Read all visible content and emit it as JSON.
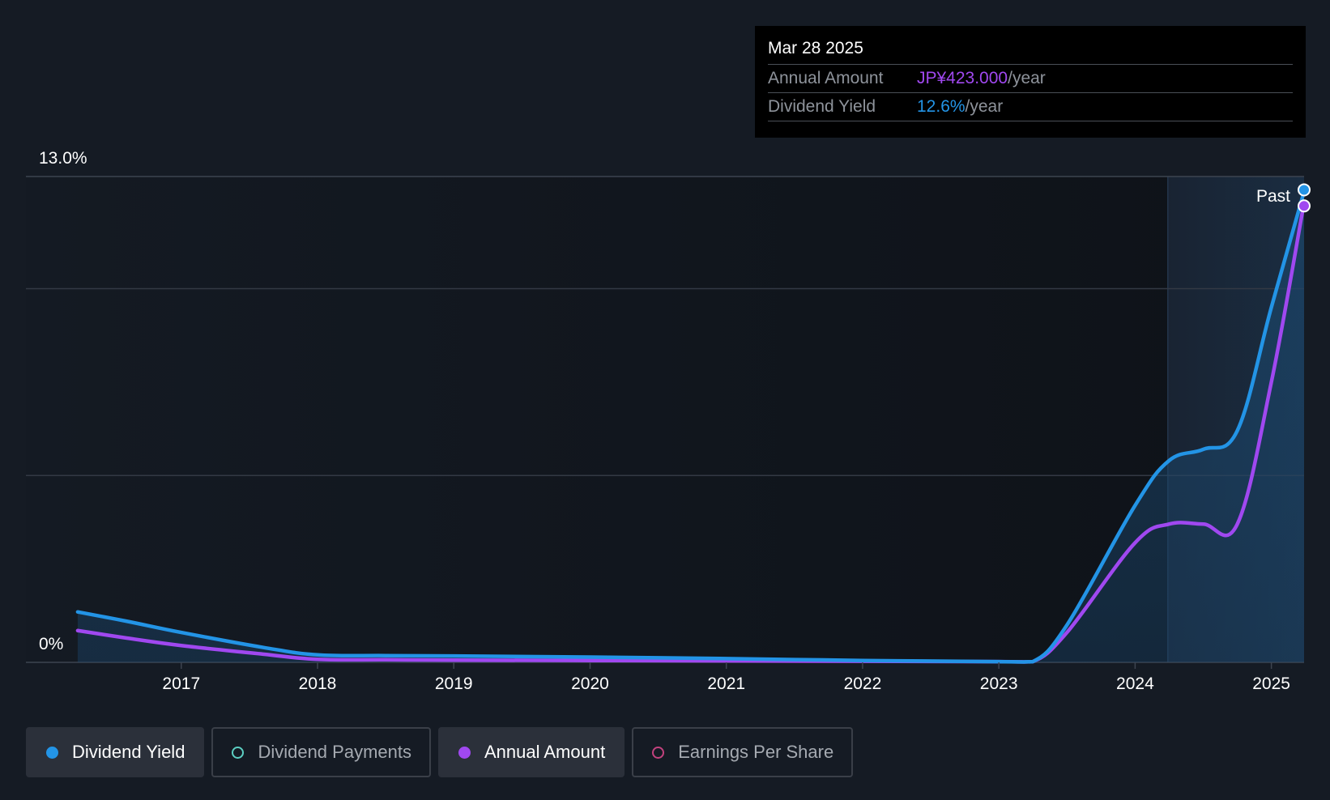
{
  "tooltip": {
    "date": "Mar 28 2025",
    "annual_amount_label": "Annual Amount",
    "annual_amount_value": "JP¥423.000",
    "annual_amount_suffix": "/year",
    "dividend_yield_label": "Dividend Yield",
    "dividend_yield_value": "12.6%",
    "dividend_yield_suffix": "/year"
  },
  "colors": {
    "background": "#151b24",
    "dividend_yield": "#2394e6",
    "annual_amount": "#a048f0",
    "dividend_payments": "#5ccfc2",
    "earnings_per_share": "#c2427e",
    "grid": "#333944",
    "axis_text": "#ffffff"
  },
  "legend": {
    "items": [
      {
        "label": "Dividend Yield",
        "active": true,
        "color": "#2394e6"
      },
      {
        "label": "Dividend Payments",
        "active": false,
        "color": "#5ccfc2"
      },
      {
        "label": "Annual Amount",
        "active": true,
        "color": "#a048f0"
      },
      {
        "label": "Earnings Per Share",
        "active": false,
        "color": "#c2427e"
      }
    ]
  },
  "chart_data": {
    "type": "line",
    "title": "",
    "xlabel": "",
    "ylabel": "",
    "x_ticks": [
      "2017",
      "2018",
      "2019",
      "2020",
      "2021",
      "2022",
      "2023",
      "2024",
      "2025"
    ],
    "y_tick_labels": [
      "0%",
      "13.0%"
    ],
    "ylim": [
      0,
      13.0
    ],
    "xlim": [
      2015.86,
      2025.24
    ],
    "past_label": "Past",
    "past_region_start": 2024.24,
    "grid": true,
    "series": [
      {
        "name": "Dividend Yield",
        "unit": "%",
        "points": [
          [
            2016.24,
            1.35
          ],
          [
            2016.6,
            1.1
          ],
          [
            2017.0,
            0.8
          ],
          [
            2017.6,
            0.4
          ],
          [
            2018.0,
            0.2
          ],
          [
            2018.5,
            0.18
          ],
          [
            2019.0,
            0.17
          ],
          [
            2020.0,
            0.14
          ],
          [
            2021.0,
            0.1
          ],
          [
            2022.0,
            0.05
          ],
          [
            2023.0,
            0.02
          ],
          [
            2023.25,
            0.02
          ],
          [
            2023.5,
            1.0
          ],
          [
            2024.0,
            4.2
          ],
          [
            2024.25,
            5.4
          ],
          [
            2024.5,
            5.7
          ],
          [
            2024.75,
            6.2
          ],
          [
            2025.0,
            9.5
          ],
          [
            2025.24,
            12.6
          ]
        ]
      },
      {
        "name": "Annual Amount",
        "unit": "JP¥",
        "points": [
          [
            2016.24,
            0.85
          ],
          [
            2016.6,
            0.65
          ],
          [
            2017.0,
            0.45
          ],
          [
            2017.6,
            0.22
          ],
          [
            2018.0,
            0.08
          ],
          [
            2018.5,
            0.07
          ],
          [
            2019.0,
            0.06
          ],
          [
            2020.0,
            0.05
          ],
          [
            2021.0,
            0.04
          ],
          [
            2022.0,
            0.03
          ],
          [
            2023.0,
            0.02
          ],
          [
            2023.25,
            0.02
          ],
          [
            2023.5,
            0.8
          ],
          [
            2024.0,
            3.2
          ],
          [
            2024.25,
            3.7
          ],
          [
            2024.5,
            3.7
          ],
          [
            2024.75,
            3.7
          ],
          [
            2025.0,
            7.5
          ],
          [
            2025.24,
            12.3
          ]
        ]
      }
    ]
  }
}
